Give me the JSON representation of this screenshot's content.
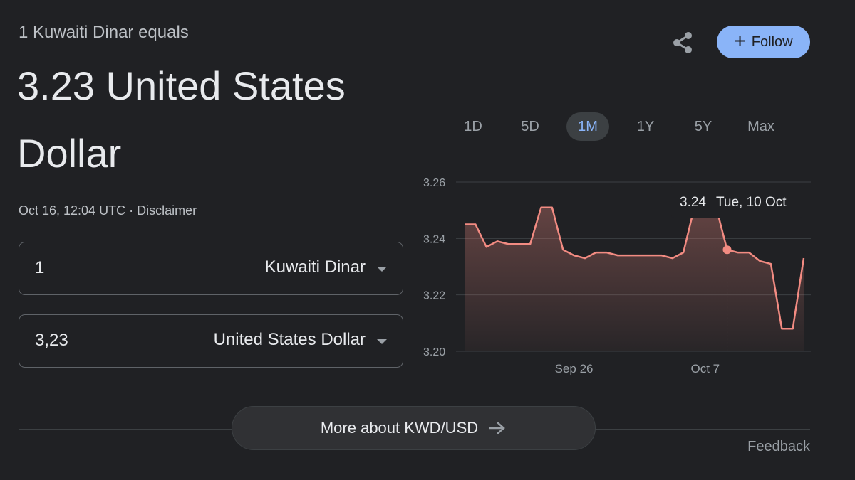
{
  "header": {
    "subtitle": "1 Kuwaiti Dinar equals",
    "result_line1": "3.23 United States",
    "result_line2": "Dollar",
    "timestamp": "Oct 16, 12:04 UTC",
    "separator": " · ",
    "disclaimer": "Disclaimer",
    "share_icon": "share-icon",
    "follow_label": "Follow"
  },
  "converter": {
    "from_value": "1",
    "from_unit": "Kuwaiti Dinar",
    "to_value": "3,23",
    "to_unit": "United States Dollar"
  },
  "ranges": [
    {
      "label": "1D",
      "active": false
    },
    {
      "label": "5D",
      "active": false
    },
    {
      "label": "1M",
      "active": true
    },
    {
      "label": "1Y",
      "active": false
    },
    {
      "label": "5Y",
      "active": false
    },
    {
      "label": "Max",
      "active": false
    }
  ],
  "chart_data": {
    "type": "line",
    "ylim": [
      3.2,
      3.26
    ],
    "y_ticks": [
      "3.26",
      "3.24",
      "3.22",
      "3.20"
    ],
    "x_ticks": [
      "Sep 26",
      "Oct 7"
    ],
    "line_color": "#f28b82",
    "grid": true,
    "values": [
      3.245,
      3.245,
      3.237,
      3.239,
      3.238,
      3.238,
      3.238,
      3.251,
      3.251,
      3.236,
      3.234,
      3.233,
      3.235,
      3.235,
      3.234,
      3.234,
      3.234,
      3.234,
      3.234,
      3.233,
      3.235,
      3.251,
      3.251,
      3.251,
      3.236,
      3.235,
      3.235,
      3.232,
      3.231,
      3.208,
      3.208,
      3.233
    ],
    "tooltip": {
      "value": "3.24",
      "date": "Tue, 10 Oct"
    }
  },
  "footer": {
    "more_label": "More about KWD/USD",
    "feedback_label": "Feedback"
  }
}
